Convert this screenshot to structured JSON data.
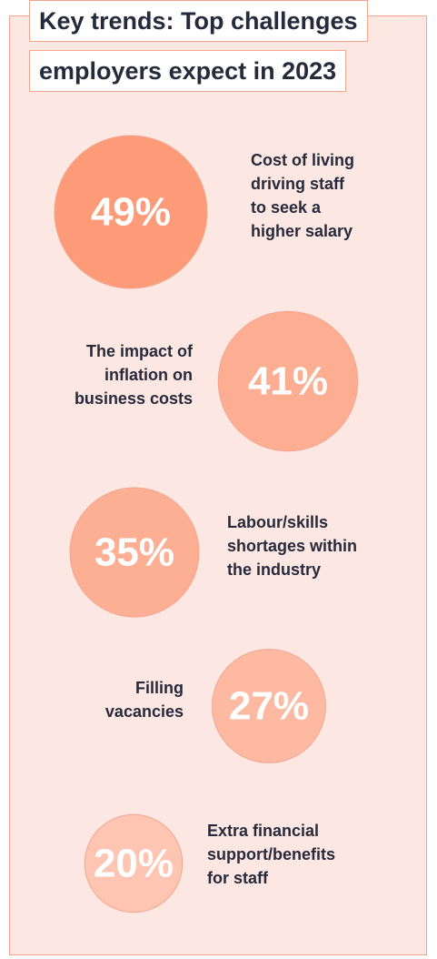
{
  "title": {
    "line1": "Key trends: Top challenges",
    "line2": "employers expect in 2023"
  },
  "colors": {
    "panel_bg": "#fde7e2",
    "border": "#f4a58e",
    "text": "#262a3a",
    "bubbles": [
      "#fd9a78",
      "#fdae92",
      "#fdaf94",
      "#fdb9a2",
      "#fec5b3"
    ]
  },
  "chart_data": {
    "type": "bubble",
    "title": "Key trends: Top challenges employers expect in 2023",
    "unit": "%",
    "items": [
      {
        "label": "Cost of living driving staff to seek a higher salary",
        "label_lines": [
          "Cost of living",
          "driving staff",
          "to seek a",
          "higher salary"
        ],
        "value": 49,
        "display": "49%"
      },
      {
        "label": "The impact of inflation on business costs",
        "label_lines": [
          "The impact of",
          "inflation on",
          "business costs"
        ],
        "value": 41,
        "display": "41%"
      },
      {
        "label": "Labour/skills shortages within the industry",
        "label_lines": [
          "Labour/skills",
          "shortages within",
          "the industry"
        ],
        "value": 35,
        "display": "35%"
      },
      {
        "label": "Filling vacancies",
        "label_lines": [
          "Filling",
          "vacancies"
        ],
        "value": 27,
        "display": "27%"
      },
      {
        "label": "Extra financial support/benefits for staff",
        "label_lines": [
          "Extra financial",
          "support/benefits",
          "for staff"
        ],
        "value": 20,
        "display": "20%"
      }
    ]
  }
}
